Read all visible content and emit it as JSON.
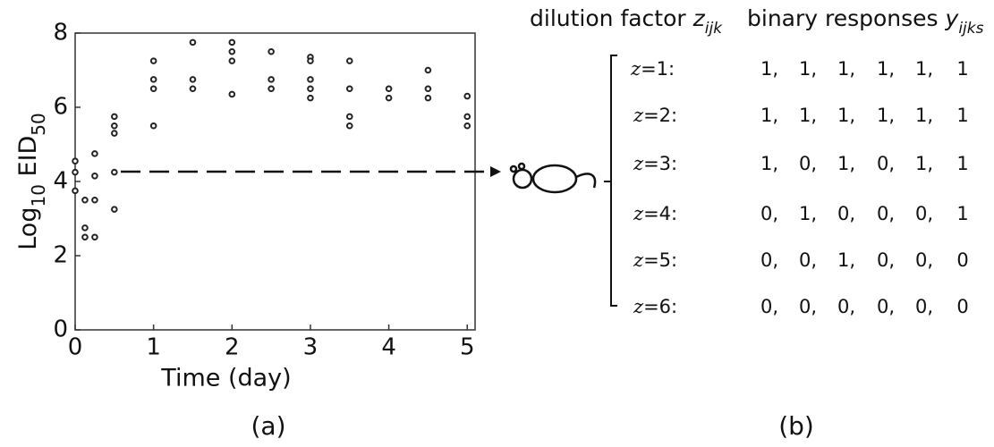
{
  "chart_data": {
    "type": "scatter",
    "x": [
      0,
      0,
      0,
      0.125,
      0.125,
      0.125,
      0.25,
      0.25,
      0.25,
      0.25,
      0.5,
      0.5,
      0.5,
      0.5,
      0.5,
      1,
      1,
      1,
      1,
      1.5,
      1.5,
      1.5,
      2,
      2,
      2,
      2,
      2.5,
      2.5,
      2.5,
      3,
      3,
      3,
      3,
      3,
      3.5,
      3.5,
      3.5,
      3.5,
      4,
      4,
      4.5,
      4.5,
      4.5,
      5,
      5,
      5
    ],
    "values": [
      4.55,
      4.25,
      3.75,
      3.5,
      2.75,
      2.5,
      4.75,
      4.15,
      3.5,
      2.5,
      5.75,
      5.5,
      5.3,
      4.25,
      3.25,
      7.25,
      6.75,
      6.5,
      5.5,
      7.75,
      6.75,
      6.5,
      7.75,
      7.5,
      7.25,
      6.35,
      7.5,
      6.75,
      6.5,
      7.35,
      7.25,
      6.75,
      6.5,
      6.25,
      7.25,
      6.5,
      5.75,
      5.5,
      6.5,
      6.25,
      7.0,
      6.5,
      6.25,
      6.3,
      5.75,
      5.5
    ],
    "color": "#222222",
    "xlim": [
      0,
      5.1
    ],
    "ylim": [
      0,
      8
    ],
    "xticks": [
      0,
      1,
      2,
      3,
      4,
      5
    ],
    "yticks": [
      0,
      2,
      4,
      6,
      8
    ],
    "xlabel": "Time (day)",
    "ylabel": [
      "Log",
      "10",
      " EID",
      "50"
    ]
  },
  "panels": [
    "(a)",
    "(b)"
  ],
  "table": {
    "header": [
      [
        "dilution factor ",
        "z",
        "ijk"
      ],
      [
        "binary responses ",
        "y",
        "ijks"
      ]
    ],
    "rows": [
      {
        "var": "z",
        "label": "=1:",
        "responses": [
          "1,",
          "1,",
          "1,",
          "1,",
          "1,",
          "1"
        ]
      },
      {
        "var": "z",
        "label": "=2:",
        "responses": [
          "1,",
          "1,",
          "1,",
          "1,",
          "1,",
          "1"
        ]
      },
      {
        "var": "z",
        "label": "=3:",
        "responses": [
          "1,",
          "0,",
          "1,",
          "0,",
          "1,",
          "1"
        ]
      },
      {
        "var": "z",
        "label": "=4:",
        "responses": [
          "0,",
          "1,",
          "0,",
          "0,",
          "0,",
          "1"
        ]
      },
      {
        "var": "z",
        "label": "=5:",
        "responses": [
          "0,",
          "0,",
          "1,",
          "0,",
          "0,",
          "0"
        ]
      },
      {
        "var": "z",
        "label": "=6:",
        "responses": [
          "0,",
          "0,",
          "0,",
          "0,",
          "0,",
          "0"
        ]
      }
    ]
  }
}
